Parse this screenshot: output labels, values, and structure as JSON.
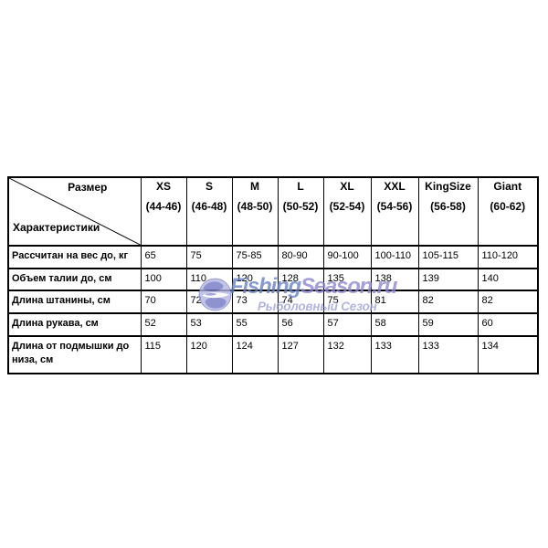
{
  "watermark": {
    "brand": "FishingSeason.ru",
    "brand_part1": "Fishing",
    "brand_part2": "Season.ru",
    "tagline": "Рыболовный Сезон",
    "colors": {
      "blue": "#6680c5",
      "purple": "#8c85d2",
      "tagline": "#9ba0d8",
      "globe_light": "#b0b4e0",
      "globe_dark": "#6f76c2"
    }
  },
  "chart_data": {
    "type": "table",
    "corner": {
      "top": "Размер",
      "bottom": "Характеристики"
    },
    "columns": [
      {
        "name": "XS",
        "range": "(44-46)"
      },
      {
        "name": "S",
        "range": "(46-48)"
      },
      {
        "name": "M",
        "range": "(48-50)"
      },
      {
        "name": "L",
        "range": "(50-52)"
      },
      {
        "name": "XL",
        "range": "(52-54)"
      },
      {
        "name": "XXL",
        "range": "(54-56)"
      },
      {
        "name": "KingSize",
        "range": "(56-58)"
      },
      {
        "name": "Giant",
        "range": "(60-62)"
      }
    ],
    "rows": [
      {
        "label": "Рассчитан на вес до, кг",
        "values": [
          "65",
          "75",
          "75-85",
          "80-90",
          "90-100",
          "100-110",
          "105-115",
          "110-120"
        ]
      },
      {
        "label": "Объем талии до, см",
        "values": [
          "100",
          "110",
          "120",
          "128",
          "135",
          "138",
          "139",
          "140"
        ]
      },
      {
        "label": "Длина штанины, см",
        "values": [
          "70",
          "72",
          "73",
          "74",
          "75",
          "81",
          "82",
          "82"
        ]
      },
      {
        "label": "Длина рукава, см",
        "values": [
          "52",
          "53",
          "55",
          "56",
          "57",
          "58",
          "59",
          "60"
        ]
      },
      {
        "label": "Длина от подмышки до низа, см",
        "values": [
          "115",
          "120",
          "124",
          "127",
          "132",
          "133",
          "133",
          "134"
        ]
      }
    ]
  }
}
